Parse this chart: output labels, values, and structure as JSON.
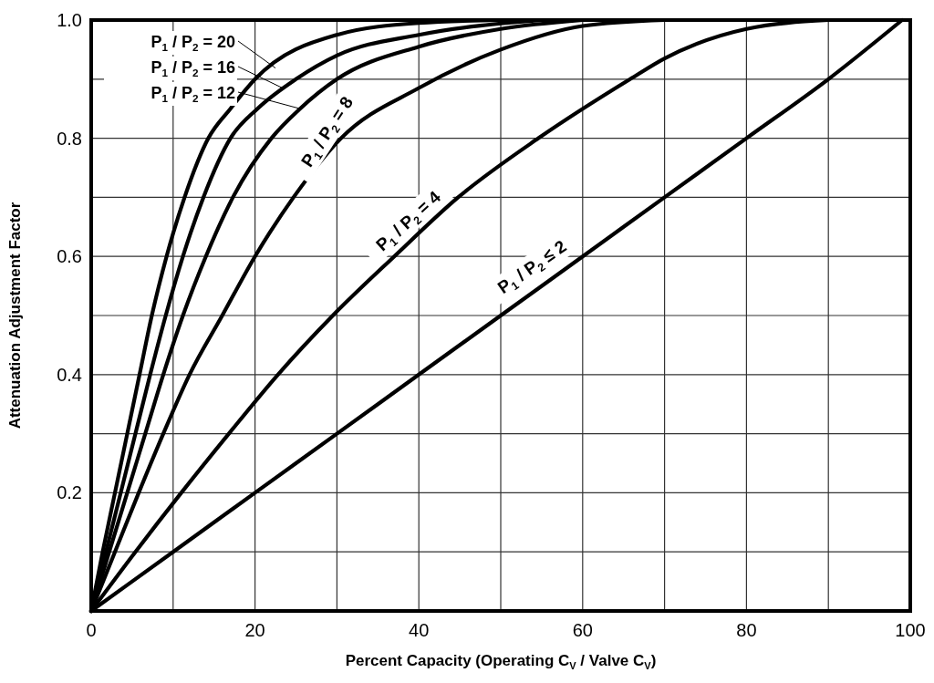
{
  "chart_data": {
    "type": "line",
    "xlabel": "Percent Capacity (Operating C$_{V}$ / Valve C$_{V}$)",
    "ylabel": "Attenuation Adjustment Factor",
    "xlim": [
      0,
      100
    ],
    "ylim": [
      0,
      1
    ],
    "xticks": [
      0,
      {
        "value": 10,
        "label": null
      },
      20,
      {
        "value": 30,
        "label": null
      },
      40,
      {
        "value": 50,
        "label": null
      },
      60,
      {
        "value": 70,
        "label": null
      },
      80,
      {
        "value": 90,
        "label": null
      },
      100
    ],
    "yticks": [
      {
        "value": 0.1,
        "label": null
      },
      0.2,
      {
        "value": 0.3,
        "label": null
      },
      0.4,
      {
        "value": 0.5,
        "label": null
      },
      0.6,
      {
        "value": 0.7,
        "label": null
      },
      0.8,
      {
        "value": 0.9,
        "label": null
      },
      {
        "value": 1,
        "label": "1.0"
      }
    ],
    "grid": true,
    "legend": "top left",
    "marker": "none",
    "line_style": "solid",
    "series": [
      {
        "name": "P$_{1}$ / P$_{2}$ = 20",
        "color": "#000000",
        "x": [
          0,
          1.4,
          2.9,
          4.4,
          5.9,
          7.4,
          9.2,
          11.4,
          14.3,
          17,
          20,
          30,
          40,
          50
        ],
        "values": [
          0,
          0.1,
          0.2,
          0.3,
          0.4,
          0.5,
          0.6,
          0.7,
          0.8,
          0.85,
          0.9,
          0.975,
          0.995,
          1
        ]
      },
      {
        "name": "P$_{1}$ / P$_{2}$ = 16",
        "color": "#000000",
        "x": [
          0,
          1.8,
          3.6,
          5.4,
          7.2,
          9.1,
          11.2,
          13.7,
          17,
          20.3,
          25,
          30,
          40,
          55
        ],
        "values": [
          0,
          0.1,
          0.2,
          0.3,
          0.4,
          0.5,
          0.6,
          0.7,
          0.8,
          0.85,
          0.9,
          0.94,
          0.975,
          1
        ]
      },
      {
        "name": "P$_{1}$ / P$_{2}$ = 12",
        "color": "#000000",
        "x": [
          0,
          2.2,
          4.4,
          6.6,
          8.8,
          11.2,
          14,
          17.3,
          22,
          25.5,
          30,
          40,
          50,
          60
        ],
        "values": [
          0,
          0.1,
          0.2,
          0.3,
          0.4,
          0.5,
          0.6,
          0.7,
          0.8,
          0.85,
          0.9,
          0.955,
          0.985,
          1
        ]
      },
      {
        "name": "P$_{1}$ / P$_{2}$ = 8",
        "color": "#000000",
        "x": [
          0,
          2.9,
          5.8,
          8.8,
          12,
          16,
          20,
          24.7,
          30.5,
          40,
          50,
          60,
          70
        ],
        "values": [
          0,
          0.1,
          0.2,
          0.3,
          0.4,
          0.5,
          0.6,
          0.7,
          0.8,
          0.885,
          0.95,
          0.99,
          1
        ]
      },
      {
        "name": "P$_{1}$ / P$_{2}$ = 4",
        "color": "#000000",
        "x": [
          0,
          5.4,
          11,
          16.8,
          22.8,
          29.5,
          37,
          44.8,
          54.6,
          65.8,
          70,
          80,
          90
        ],
        "values": [
          0,
          0.1,
          0.2,
          0.3,
          0.4,
          0.5,
          0.6,
          0.7,
          0.8,
          0.9,
          0.935,
          0.985,
          1
        ]
      },
      {
        "name": "P$_{1}$ / P$_{2}$ ≤ 2",
        "color": "#000000",
        "x": [
          0,
          10,
          20,
          30,
          40,
          50,
          60,
          70,
          80,
          90,
          99
        ],
        "values": [
          0,
          0.1,
          0.2,
          0.3,
          0.4,
          0.5,
          0.6,
          0.7,
          0.8,
          0.9,
          1
        ]
      }
    ]
  }
}
